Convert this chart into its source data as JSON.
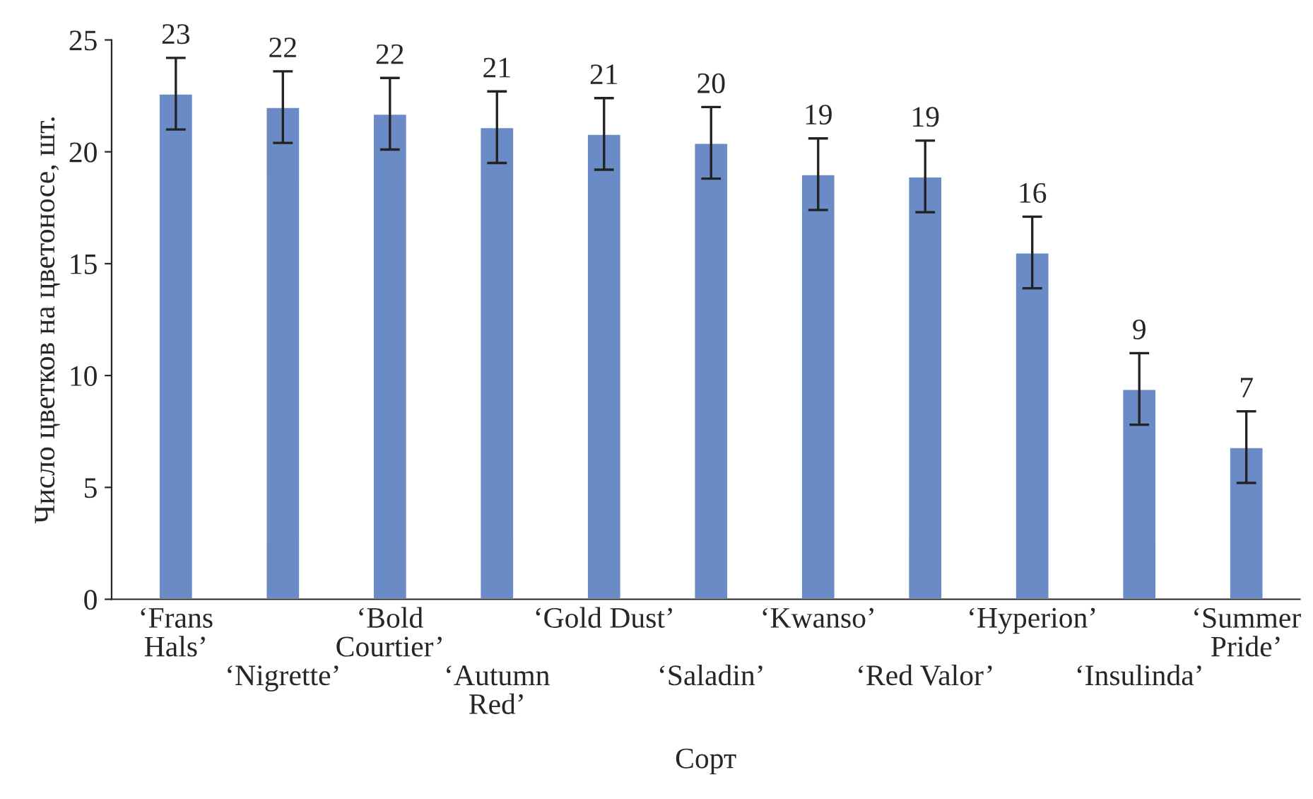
{
  "chart_data": {
    "type": "bar",
    "xlabel": "Сорт",
    "ylabel": "Число цветков на цветоносе, шт.",
    "categories": [
      "‘Frans\nHals’",
      "‘Nigrette’",
      "‘Bold\nCourtier’",
      "‘Autumn\nRed’",
      "‘Gold Dust’",
      "‘Saladin’",
      "‘Kwanso’",
      "‘Red Valor’",
      "‘Hyperion’",
      "‘Insulinda’",
      "‘Summer\nPride’"
    ],
    "values": [
      22.6,
      22.0,
      21.7,
      21.1,
      20.8,
      20.4,
      19.0,
      18.9,
      15.5,
      9.4,
      6.8
    ],
    "errors": [
      1.6,
      1.6,
      1.6,
      1.6,
      1.6,
      1.6,
      1.6,
      1.6,
      1.6,
      1.6,
      1.6
    ],
    "value_labels": [
      "23",
      "22",
      "22",
      "21",
      "21",
      "20",
      "19",
      "19",
      "16",
      "9",
      "7"
    ],
    "color": "#6b8bc6",
    "ylim": [
      0,
      25
    ],
    "yticks": [
      0,
      5,
      10,
      15,
      20,
      25
    ],
    "grid": false
  }
}
